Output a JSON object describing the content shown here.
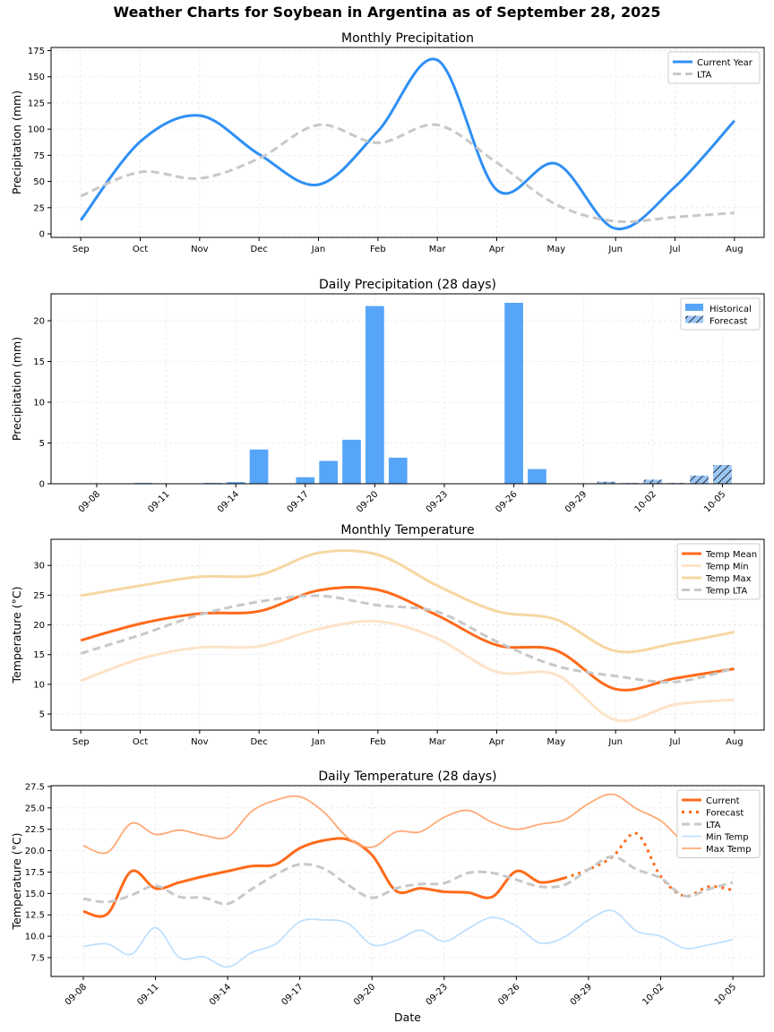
{
  "figure_title": "Weather Charts for Soybean in Argentina as of September 28, 2025",
  "chart_data": [
    {
      "type": "line",
      "title": "Monthly Precipitation",
      "xlabel": "",
      "ylabel": "Precipitation (mm)",
      "categories": [
        "Sep",
        "Oct",
        "Nov",
        "Dec",
        "Jan",
        "Feb",
        "Mar",
        "Apr",
        "May",
        "Jun",
        "Jul",
        "Aug"
      ],
      "ylim": [
        -3.4,
        178
      ],
      "yticks": [
        0,
        25,
        50,
        75,
        100,
        125,
        150,
        175
      ],
      "grid": true,
      "legend": "top-right",
      "series": [
        {
          "name": "Current Year",
          "color": "#2f8ff5",
          "style": "solid",
          "values": [
            13,
            88,
            113,
            76,
            47,
            98,
            166,
            42,
            67,
            5,
            45,
            108
          ]
        },
        {
          "name": "LTA",
          "color": "#c8c8c8",
          "style": "dashed",
          "values": [
            36,
            59,
            53,
            72,
            104,
            87,
            104,
            68,
            28,
            12,
            16,
            20
          ]
        }
      ]
    },
    {
      "type": "bar",
      "title": "Daily Precipitation (28 days)",
      "xlabel": "",
      "ylabel": "Precipitation (mm)",
      "categories": [
        "09-08",
        "09-09",
        "09-10",
        "09-11",
        "09-12",
        "09-13",
        "09-14",
        "09-15",
        "09-16",
        "09-17",
        "09-18",
        "09-19",
        "09-20",
        "09-21",
        "09-22",
        "09-23",
        "09-24",
        "09-25",
        "09-26",
        "09-27",
        "09-28",
        "09-29",
        "09-30",
        "10-01",
        "10-02",
        "10-03",
        "10-04",
        "10-05"
      ],
      "xtick_labels": [
        "09-08",
        "09-11",
        "09-14",
        "09-17",
        "09-20",
        "09-23",
        "09-26",
        "09-29",
        "10-02",
        "10-05"
      ],
      "ylim": [
        0,
        23.3
      ],
      "yticks": [
        0,
        5,
        10,
        15,
        20
      ],
      "grid": true,
      "legend": "top-right",
      "series": [
        {
          "name": "Historical",
          "color": "#57a5f8",
          "values": [
            0,
            0,
            0.1,
            0,
            0,
            0.1,
            0.2,
            4.2,
            0,
            0.8,
            2.8,
            5.4,
            21.8,
            3.2,
            0,
            0,
            0,
            0,
            22.2,
            1.8,
            0,
            0,
            null,
            null,
            null,
            null,
            null,
            null
          ]
        },
        {
          "name": "Forecast",
          "color": "#9cc7f5",
          "hatch": true,
          "values": [
            null,
            null,
            null,
            null,
            null,
            null,
            null,
            null,
            null,
            null,
            null,
            null,
            null,
            null,
            null,
            null,
            null,
            null,
            null,
            null,
            null,
            null,
            0.25,
            0.1,
            0.5,
            0.1,
            1.0,
            2.3
          ]
        }
      ]
    },
    {
      "type": "line",
      "title": "Monthly Temperature",
      "xlabel": "",
      "ylabel": "Temperature (°C)",
      "categories": [
        "Sep",
        "Oct",
        "Nov",
        "Dec",
        "Jan",
        "Feb",
        "Mar",
        "Apr",
        "May",
        "Jun",
        "Jul",
        "Aug"
      ],
      "ylim": [
        2.3,
        34.4
      ],
      "yticks": [
        5,
        10,
        15,
        20,
        25,
        30
      ],
      "grid": true,
      "legend": "top-right",
      "series": [
        {
          "name": "Temp Mean",
          "color": "#ff6a1a",
          "style": "solid",
          "values": [
            17.4,
            20.2,
            21.9,
            22.3,
            25.8,
            25.9,
            21.6,
            16.6,
            15.7,
            9.2,
            11.0,
            12.6
          ]
        },
        {
          "name": "Temp Min",
          "color": "#fde3c8",
          "style": "solid",
          "values": [
            10.6,
            14.3,
            16.2,
            16.4,
            19.3,
            20.6,
            17.7,
            12.1,
            11.6,
            4.0,
            6.6,
            7.4
          ]
        },
        {
          "name": "Temp Max",
          "color": "#f7d7a2",
          "style": "solid",
          "values": [
            24.9,
            26.6,
            28.1,
            28.4,
            32.1,
            31.8,
            26.6,
            22.3,
            20.9,
            15.6,
            16.9,
            18.8
          ]
        },
        {
          "name": "Temp LTA",
          "color": "#c8c8c8",
          "style": "dashed",
          "values": [
            15.2,
            18.3,
            21.7,
            23.9,
            24.9,
            23.3,
            22.2,
            17.2,
            13.1,
            11.4,
            10.4,
            12.7
          ]
        }
      ]
    },
    {
      "type": "line",
      "title": "Daily Temperature (28 days)",
      "xlabel": "Date",
      "ylabel": "Temperature (°C)",
      "categories": [
        "09-08",
        "09-09",
        "09-10",
        "09-11",
        "09-12",
        "09-13",
        "09-14",
        "09-15",
        "09-16",
        "09-17",
        "09-18",
        "09-19",
        "09-20",
        "09-21",
        "09-22",
        "09-23",
        "09-24",
        "09-25",
        "09-26",
        "09-27",
        "09-28",
        "09-29",
        "09-30",
        "10-01",
        "10-02",
        "10-03",
        "10-04",
        "10-05"
      ],
      "xtick_labels": [
        "09-08",
        "09-11",
        "09-14",
        "09-17",
        "09-20",
        "09-23",
        "09-26",
        "09-29",
        "10-02",
        "10-05"
      ],
      "ylim": [
        5.3,
        27.6
      ],
      "yticks": [
        7.5,
        10.0,
        12.5,
        15.0,
        17.5,
        20.0,
        22.5,
        25.0,
        27.5
      ],
      "grid": true,
      "legend": "top-right",
      "series": [
        {
          "name": "Current",
          "color": "#ff6a1a",
          "style": "solid",
          "values": [
            12.9,
            12.6,
            17.6,
            15.6,
            16.3,
            17.0,
            17.6,
            18.2,
            18.4,
            20.3,
            21.2,
            21.3,
            19.5,
            15.3,
            15.6,
            15.2,
            15.1,
            14.6,
            17.6,
            16.3,
            16.8,
            null,
            null,
            null,
            null,
            null,
            null,
            null
          ]
        },
        {
          "name": "Forecast",
          "color": "#ff6a1a",
          "style": "dotted",
          "values": [
            null,
            null,
            null,
            null,
            null,
            null,
            null,
            null,
            null,
            null,
            null,
            null,
            null,
            null,
            null,
            null,
            null,
            null,
            null,
            null,
            16.8,
            17.8,
            19.3,
            22.0,
            17.0,
            14.7,
            15.8,
            15.4
          ]
        },
        {
          "name": "LTA",
          "color": "#c8c8c8",
          "style": "dashed",
          "values": [
            14.4,
            14.0,
            14.8,
            15.9,
            14.6,
            14.5,
            13.8,
            15.5,
            17.2,
            18.4,
            17.9,
            16.0,
            14.5,
            15.6,
            16.1,
            16.2,
            17.4,
            17.4,
            16.6,
            15.8,
            16.0,
            17.8,
            19.3,
            17.8,
            16.8,
            14.7,
            15.5,
            16.3
          ]
        },
        {
          "name": "Min Temp",
          "color": "#bfe0ff",
          "style": "thin",
          "values": [
            8.8,
            9.1,
            7.9,
            11.0,
            7.5,
            7.6,
            6.4,
            8.1,
            9.1,
            11.7,
            11.9,
            11.5,
            9.0,
            9.5,
            10.7,
            9.4,
            10.9,
            12.2,
            11.2,
            9.2,
            9.9,
            11.9,
            13.0,
            10.6,
            10.0,
            8.6,
            9.0,
            9.6
          ]
        },
        {
          "name": "Max Temp",
          "color": "#ffaa77",
          "style": "thin",
          "values": [
            20.6,
            19.8,
            23.2,
            21.9,
            22.4,
            21.8,
            21.6,
            24.6,
            25.9,
            26.3,
            24.5,
            21.5,
            20.4,
            22.2,
            22.2,
            23.9,
            24.7,
            23.3,
            22.5,
            23.1,
            23.6,
            25.5,
            26.6,
            24.9,
            23.5,
            21.2,
            22.3,
            24.0
          ]
        }
      ]
    }
  ]
}
